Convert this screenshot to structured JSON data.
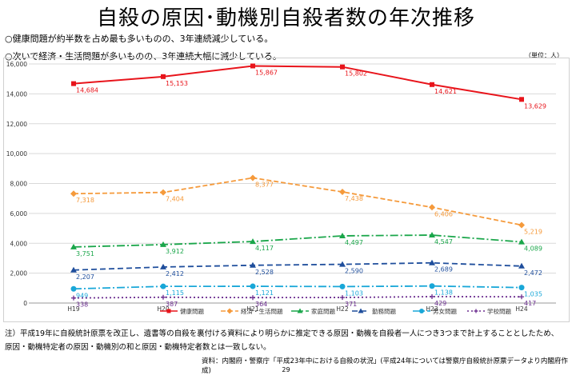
{
  "title": "自殺の原因･動機別自殺者数の年次推移",
  "bullets": [
    "○健康問題が約半数を占め最も多いものの、3年連続減少している。",
    "○次いで経済・生活問題が多いものの、3年連続大幅に減少している。"
  ],
  "unit_label": "（単位：人）",
  "notes": [
    "注）平成19年に自殺統計原票を改正し、遺書等の自殺を裏付ける資料により明らかに推定できる原因・動機を自殺者一人につき3つまで計上することとしたため、",
    "原因・動機特定者の原因・動機別の和と原因・動機特定者数とは一致しない。"
  ],
  "source": "資料：内閣府・警察庁「平成23年中における自殺の状況」(平成24年については警察庁自殺統計原票データより内閣府作成)",
  "page_number": "29",
  "chart_data": {
    "type": "line",
    "title": "",
    "xlabel": "",
    "ylabel": "",
    "categories": [
      "H19",
      "H20",
      "H21",
      "H22",
      "H23",
      "H24"
    ],
    "ylim": [
      0,
      16000
    ],
    "yticks": [
      0,
      2000,
      4000,
      6000,
      8000,
      10000,
      12000,
      14000,
      16000
    ],
    "ytick_labels": [
      "0",
      "2,000",
      "4,000",
      "6,000",
      "8,000",
      "10,000",
      "12,000",
      "14,000",
      "16,000"
    ],
    "grid": true,
    "legend_position": "bottom",
    "series": [
      {
        "name": "健康問題",
        "color": "#e8141b",
        "dash": "",
        "marker": "square",
        "values": [
          14684,
          15153,
          15867,
          15802,
          14621,
          13629
        ],
        "labels": [
          "14,684",
          "15,153",
          "15,867",
          "15,802",
          "14,621",
          "13,629"
        ]
      },
      {
        "name": "経済・生活問題",
        "color": "#f59a3b",
        "dash": "6,3",
        "marker": "diamond",
        "values": [
          7318,
          7404,
          8377,
          7438,
          6406,
          5219
        ],
        "labels": [
          "7,318",
          "7,404",
          "8,377",
          "7,438",
          "6,406",
          "5,219"
        ]
      },
      {
        "name": "家庭問題",
        "color": "#1aa64a",
        "dash": "10,3,2,3",
        "marker": "triangle",
        "values": [
          3751,
          3912,
          4117,
          4497,
          4547,
          4089
        ],
        "labels": [
          "3,751",
          "3,912",
          "4,117",
          "4,497",
          "4,547",
          "4,089"
        ]
      },
      {
        "name": "勤務問題",
        "color": "#1f4e9c",
        "dash": "7,4",
        "marker": "triangle",
        "values": [
          2207,
          2412,
          2528,
          2590,
          2689,
          2472
        ],
        "labels": [
          "2,207",
          "2,412",
          "2,528",
          "2,590",
          "2,689",
          "2,472"
        ]
      },
      {
        "name": "男女問題",
        "color": "#19a7d8",
        "dash": "10,3,2,3",
        "marker": "circle",
        "values": [
          949,
          1115,
          1121,
          1103,
          1138,
          1035
        ],
        "labels": [
          "949",
          "1,115",
          "1,121",
          "1,103",
          "1,138",
          "1,035"
        ]
      },
      {
        "name": "学校問題",
        "color": "#6b2d8f",
        "dash": "2,3",
        "marker": "plus",
        "values": [
          338,
          387,
          364,
          371,
          429,
          417
        ],
        "labels": [
          "338",
          "387",
          "364",
          "371",
          "429",
          "417"
        ]
      }
    ]
  }
}
